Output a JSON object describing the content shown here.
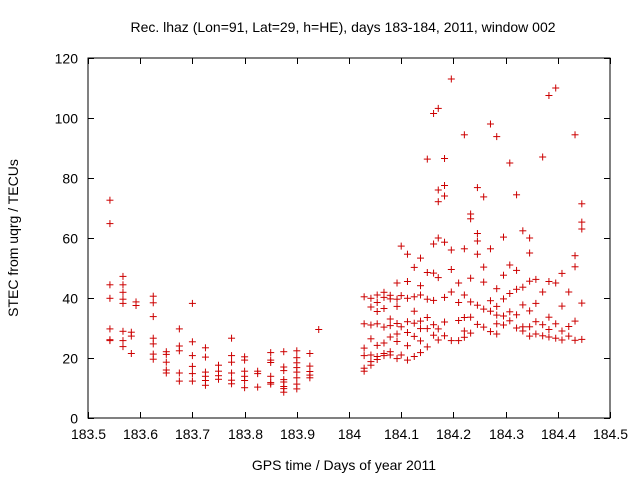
{
  "chart_data": {
    "type": "scatter",
    "title": "Rec. lhaz (Lon=91, Lat=29, h=HE), days 183-184, 2011, window 002",
    "xlabel": "GPS time / Days of year 2011",
    "ylabel": "STEC from uqrg / TECUs",
    "xlim": [
      183.5,
      184.5
    ],
    "ylim": [
      0,
      120
    ],
    "xticks": [
      183.5,
      183.6,
      183.7,
      183.8,
      183.9,
      184,
      184.1,
      184.2,
      184.3,
      184.4,
      184.5
    ],
    "xtick_labels": [
      "183.5",
      "183.6",
      "183.7",
      "183.8",
      "183.9",
      "184",
      "184.1",
      "184.2",
      "184.3",
      "184.4",
      "184.5"
    ],
    "yticks": [
      0,
      20,
      40,
      60,
      80,
      100,
      120
    ],
    "ytick_labels": [
      "0",
      "20",
      "40",
      "60",
      "80",
      "100",
      "120"
    ],
    "marker": "+",
    "color": "#cc0000",
    "series": [
      {
        "name": "STEC",
        "points": [
          [
            183.542,
            72.6
          ],
          [
            183.542,
            64.8
          ],
          [
            183.542,
            44.4
          ],
          [
            183.542,
            39.9
          ],
          [
            183.542,
            29.7
          ],
          [
            183.542,
            26.1
          ],
          [
            183.542,
            25.8
          ],
          [
            183.567,
            47.2
          ],
          [
            183.567,
            44.4
          ],
          [
            183.567,
            41.9
          ],
          [
            183.567,
            39.6
          ],
          [
            183.567,
            38.2
          ],
          [
            183.567,
            28.9
          ],
          [
            183.567,
            25.8
          ],
          [
            183.567,
            23.8
          ],
          [
            183.583,
            28.6
          ],
          [
            183.583,
            27.3
          ],
          [
            183.583,
            21.5
          ],
          [
            183.592,
            38.7
          ],
          [
            183.592,
            37.5
          ],
          [
            183.625,
            40.6
          ],
          [
            183.625,
            38.4
          ],
          [
            183.625,
            33.8
          ],
          [
            183.625,
            26.6
          ],
          [
            183.625,
            24.7
          ],
          [
            183.625,
            21.3
          ],
          [
            183.625,
            19.6
          ],
          [
            183.65,
            22.1
          ],
          [
            183.65,
            21.2
          ],
          [
            183.65,
            18.6
          ],
          [
            183.65,
            16.0
          ],
          [
            183.65,
            15.0
          ],
          [
            183.675,
            29.7
          ],
          [
            183.675,
            24.0
          ],
          [
            183.675,
            22.4
          ],
          [
            183.675,
            15.0
          ],
          [
            183.675,
            12.3
          ],
          [
            183.7,
            38.2
          ],
          [
            183.7,
            25.4
          ],
          [
            183.7,
            20.8
          ],
          [
            183.7,
            17.2
          ],
          [
            183.7,
            14.8
          ],
          [
            183.7,
            12.3
          ],
          [
            183.725,
            23.4
          ],
          [
            183.725,
            20.3
          ],
          [
            183.725,
            15.3
          ],
          [
            183.725,
            13.9
          ],
          [
            183.725,
            12.5
          ],
          [
            183.725,
            10.9
          ],
          [
            183.75,
            17.6
          ],
          [
            183.75,
            15.6
          ],
          [
            183.75,
            14.1
          ],
          [
            183.75,
            12.9
          ],
          [
            183.775,
            26.6
          ],
          [
            183.775,
            20.8
          ],
          [
            183.775,
            18.6
          ],
          [
            183.775,
            15.0
          ],
          [
            183.775,
            12.6
          ],
          [
            183.775,
            11.4
          ],
          [
            183.8,
            20.4
          ],
          [
            183.8,
            19.3
          ],
          [
            183.8,
            15.6
          ],
          [
            183.8,
            13.9
          ],
          [
            183.8,
            12.5
          ],
          [
            183.8,
            10.1
          ],
          [
            183.825,
            15.6
          ],
          [
            183.825,
            14.8
          ],
          [
            183.825,
            10.3
          ],
          [
            183.85,
            21.8
          ],
          [
            183.85,
            19.3
          ],
          [
            183.85,
            18.5
          ],
          [
            183.85,
            13.9
          ],
          [
            183.85,
            11.8
          ],
          [
            183.85,
            11.3
          ],
          [
            183.875,
            22.1
          ],
          [
            183.875,
            17.0
          ],
          [
            183.875,
            15.8
          ],
          [
            183.875,
            12.8
          ],
          [
            183.875,
            12.0
          ],
          [
            183.875,
            10.5
          ],
          [
            183.875,
            9.8
          ],
          [
            183.875,
            8.6
          ],
          [
            183.9,
            22.4
          ],
          [
            183.9,
            20.1
          ],
          [
            183.9,
            18.4
          ],
          [
            183.9,
            16.8
          ],
          [
            183.9,
            15.3
          ],
          [
            183.9,
            13.4
          ],
          [
            183.9,
            11.3
          ],
          [
            183.9,
            9.7
          ],
          [
            183.925,
            21.5
          ],
          [
            183.925,
            17.3
          ],
          [
            183.925,
            15.5
          ],
          [
            183.925,
            14.3
          ],
          [
            183.925,
            13.4
          ],
          [
            183.942,
            29.5
          ],
          [
            184.029,
            40.4
          ],
          [
            184.029,
            31.4
          ],
          [
            184.029,
            23.3
          ],
          [
            184.029,
            20.8
          ],
          [
            184.029,
            16.6
          ],
          [
            184.029,
            15.6
          ],
          [
            184.042,
            39.9
          ],
          [
            184.042,
            37.0
          ],
          [
            184.042,
            31.0
          ],
          [
            184.042,
            26.4
          ],
          [
            184.042,
            21.0
          ],
          [
            184.042,
            18.8
          ],
          [
            184.042,
            17.6
          ],
          [
            184.054,
            41.0
          ],
          [
            184.054,
            38.5
          ],
          [
            184.054,
            35.5
          ],
          [
            184.054,
            31.4
          ],
          [
            184.054,
            24.2
          ],
          [
            184.054,
            20.5
          ],
          [
            184.054,
            19.5
          ],
          [
            184.067,
            41.9
          ],
          [
            184.067,
            40.2
          ],
          [
            184.067,
            36.5
          ],
          [
            184.067,
            30.3
          ],
          [
            184.067,
            25.0
          ],
          [
            184.067,
            21.5
          ],
          [
            184.067,
            20.8
          ],
          [
            184.079,
            40.9
          ],
          [
            184.079,
            39.7
          ],
          [
            184.079,
            33.0
          ],
          [
            184.079,
            30.8
          ],
          [
            184.079,
            27.0
          ],
          [
            184.079,
            22.1
          ],
          [
            184.079,
            21.0
          ],
          [
            184.092,
            45.0
          ],
          [
            184.092,
            39.6
          ],
          [
            184.092,
            37.2
          ],
          [
            184.092,
            31.5
          ],
          [
            184.092,
            28.0
          ],
          [
            184.092,
            25.5
          ],
          [
            184.092,
            19.8
          ],
          [
            184.1,
            57.3
          ],
          [
            184.1,
            40.8
          ],
          [
            184.1,
            30.4
          ],
          [
            184.1,
            21.0
          ],
          [
            184.112,
            54.6
          ],
          [
            184.112,
            45.5
          ],
          [
            184.112,
            39.9
          ],
          [
            184.112,
            32.1
          ],
          [
            184.112,
            28.5
          ],
          [
            184.112,
            24.1
          ],
          [
            184.112,
            19.3
          ],
          [
            184.125,
            50.2
          ],
          [
            184.125,
            40.4
          ],
          [
            184.125,
            35.6
          ],
          [
            184.125,
            31.6
          ],
          [
            184.125,
            27.2
          ],
          [
            184.125,
            20.5
          ],
          [
            184.137,
            53.3
          ],
          [
            184.137,
            44.1
          ],
          [
            184.137,
            41.0
          ],
          [
            184.137,
            32.3
          ],
          [
            184.137,
            29.8
          ],
          [
            184.137,
            25.7
          ],
          [
            184.137,
            21.8
          ],
          [
            184.15,
            86.3
          ],
          [
            184.15,
            48.5
          ],
          [
            184.15,
            39.6
          ],
          [
            184.15,
            33.5
          ],
          [
            184.15,
            29.8
          ],
          [
            184.15,
            23.7
          ],
          [
            184.162,
            101.5
          ],
          [
            184.162,
            58.0
          ],
          [
            184.162,
            48.3
          ],
          [
            184.162,
            39.2
          ],
          [
            184.162,
            31.1
          ],
          [
            184.162,
            27.6
          ],
          [
            184.171,
            103.2
          ],
          [
            184.171,
            76.0
          ],
          [
            184.171,
            72.1
          ],
          [
            184.171,
            60.0
          ],
          [
            184.171,
            46.8
          ],
          [
            184.171,
            29.7
          ],
          [
            184.171,
            26.0
          ],
          [
            184.183,
            77.5
          ],
          [
            184.183,
            74.0
          ],
          [
            184.183,
            86.5
          ],
          [
            184.183,
            58.6
          ],
          [
            184.183,
            40.2
          ],
          [
            184.183,
            32.0
          ],
          [
            184.183,
            27.4
          ],
          [
            184.196,
            113.0
          ],
          [
            184.196,
            56.0
          ],
          [
            184.196,
            49.5
          ],
          [
            184.196,
            42.0
          ],
          [
            184.196,
            25.8
          ],
          [
            184.21,
            45.0
          ],
          [
            184.21,
            38.5
          ],
          [
            184.21,
            32.5
          ],
          [
            184.21,
            25.8
          ],
          [
            184.221,
            94.4
          ],
          [
            184.221,
            56.4
          ],
          [
            184.221,
            41.0
          ],
          [
            184.221,
            33.5
          ],
          [
            184.221,
            29.0
          ],
          [
            184.221,
            26.9
          ],
          [
            184.233,
            68.0
          ],
          [
            184.233,
            66.4
          ],
          [
            184.233,
            46.6
          ],
          [
            184.233,
            38.7
          ],
          [
            184.233,
            33.6
          ],
          [
            184.233,
            28.3
          ],
          [
            184.246,
            76.8
          ],
          [
            184.246,
            61.5
          ],
          [
            184.246,
            59.0
          ],
          [
            184.246,
            54.6
          ],
          [
            184.246,
            37.6
          ],
          [
            184.246,
            31.2
          ],
          [
            184.258,
            73.7
          ],
          [
            184.258,
            50.3
          ],
          [
            184.258,
            45.3
          ],
          [
            184.258,
            36.3
          ],
          [
            184.258,
            30.3
          ],
          [
            184.271,
            98.0
          ],
          [
            184.271,
            56.4
          ],
          [
            184.271,
            39.1
          ],
          [
            184.271,
            35.6
          ],
          [
            184.271,
            28.8
          ],
          [
            184.283,
            93.8
          ],
          [
            184.283,
            43.1
          ],
          [
            184.283,
            37.2
          ],
          [
            184.283,
            34.3
          ],
          [
            184.283,
            31.4
          ],
          [
            184.283,
            28.0
          ],
          [
            184.296,
            60.3
          ],
          [
            184.296,
            47.6
          ],
          [
            184.296,
            39.7
          ],
          [
            184.296,
            34.0
          ],
          [
            184.296,
            31.0
          ],
          [
            184.308,
            85.0
          ],
          [
            184.308,
            51.0
          ],
          [
            184.308,
            41.5
          ],
          [
            184.308,
            35.4
          ],
          [
            184.308,
            32.4
          ],
          [
            184.321,
            74.4
          ],
          [
            184.321,
            49.2
          ],
          [
            184.321,
            42.9
          ],
          [
            184.321,
            34.4
          ],
          [
            184.321,
            30.0
          ],
          [
            184.333,
            62.4
          ],
          [
            184.333,
            43.6
          ],
          [
            184.333,
            37.7
          ],
          [
            184.333,
            30.4
          ],
          [
            184.333,
            29.0
          ],
          [
            184.346,
            60.0
          ],
          [
            184.346,
            55.0
          ],
          [
            184.346,
            45.6
          ],
          [
            184.346,
            35.7
          ],
          [
            184.346,
            30.4
          ],
          [
            184.346,
            27.3
          ],
          [
            184.358,
            46.2
          ],
          [
            184.358,
            38.2
          ],
          [
            184.358,
            32.1
          ],
          [
            184.358,
            28.0
          ],
          [
            184.371,
            87.0
          ],
          [
            184.371,
            42.0
          ],
          [
            184.371,
            31.1
          ],
          [
            184.371,
            27.4
          ],
          [
            184.383,
            107.5
          ],
          [
            184.383,
            45.5
          ],
          [
            184.383,
            33.6
          ],
          [
            184.383,
            29.5
          ],
          [
            184.383,
            27.0
          ],
          [
            184.396,
            110.0
          ],
          [
            184.396,
            45.0
          ],
          [
            184.396,
            31.4
          ],
          [
            184.396,
            26.6
          ],
          [
            184.408,
            48.2
          ],
          [
            184.408,
            37.3
          ],
          [
            184.408,
            29.0
          ],
          [
            184.408,
            26.0
          ],
          [
            184.421,
            42.0
          ],
          [
            184.421,
            30.5
          ],
          [
            184.421,
            27.3
          ],
          [
            184.433,
            94.4
          ],
          [
            184.433,
            54.1
          ],
          [
            184.433,
            50.4
          ],
          [
            184.433,
            32.3
          ],
          [
            184.433,
            25.9
          ],
          [
            184.446,
            71.4
          ],
          [
            184.446,
            65.3
          ],
          [
            184.446,
            63.0
          ],
          [
            184.446,
            38.3
          ],
          [
            184.446,
            26.2
          ]
        ]
      }
    ]
  }
}
